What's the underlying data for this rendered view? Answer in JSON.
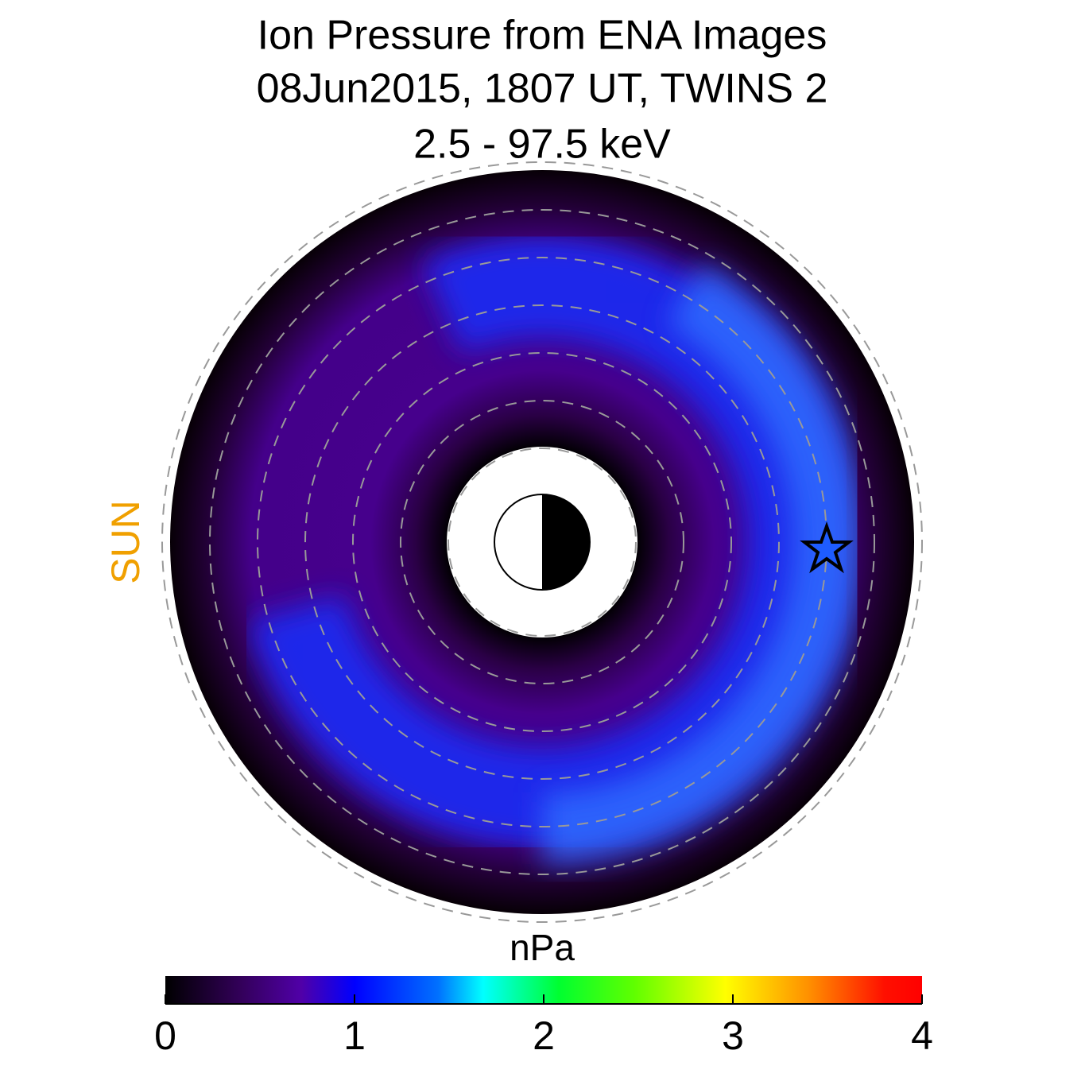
{
  "chart_data": {
    "type": "polar-map",
    "title": [
      "Ion Pressure from  ENA Images",
      "08Jun2015, 1807 UT,  TWINS 2",
      "2.5 - 97.5 keV"
    ],
    "sun_label": "SUN",
    "colorbar": {
      "label": "nPa",
      "xlim": [
        0,
        4
      ],
      "xticks": [
        0,
        1,
        2,
        3,
        4
      ]
    }
  }
}
